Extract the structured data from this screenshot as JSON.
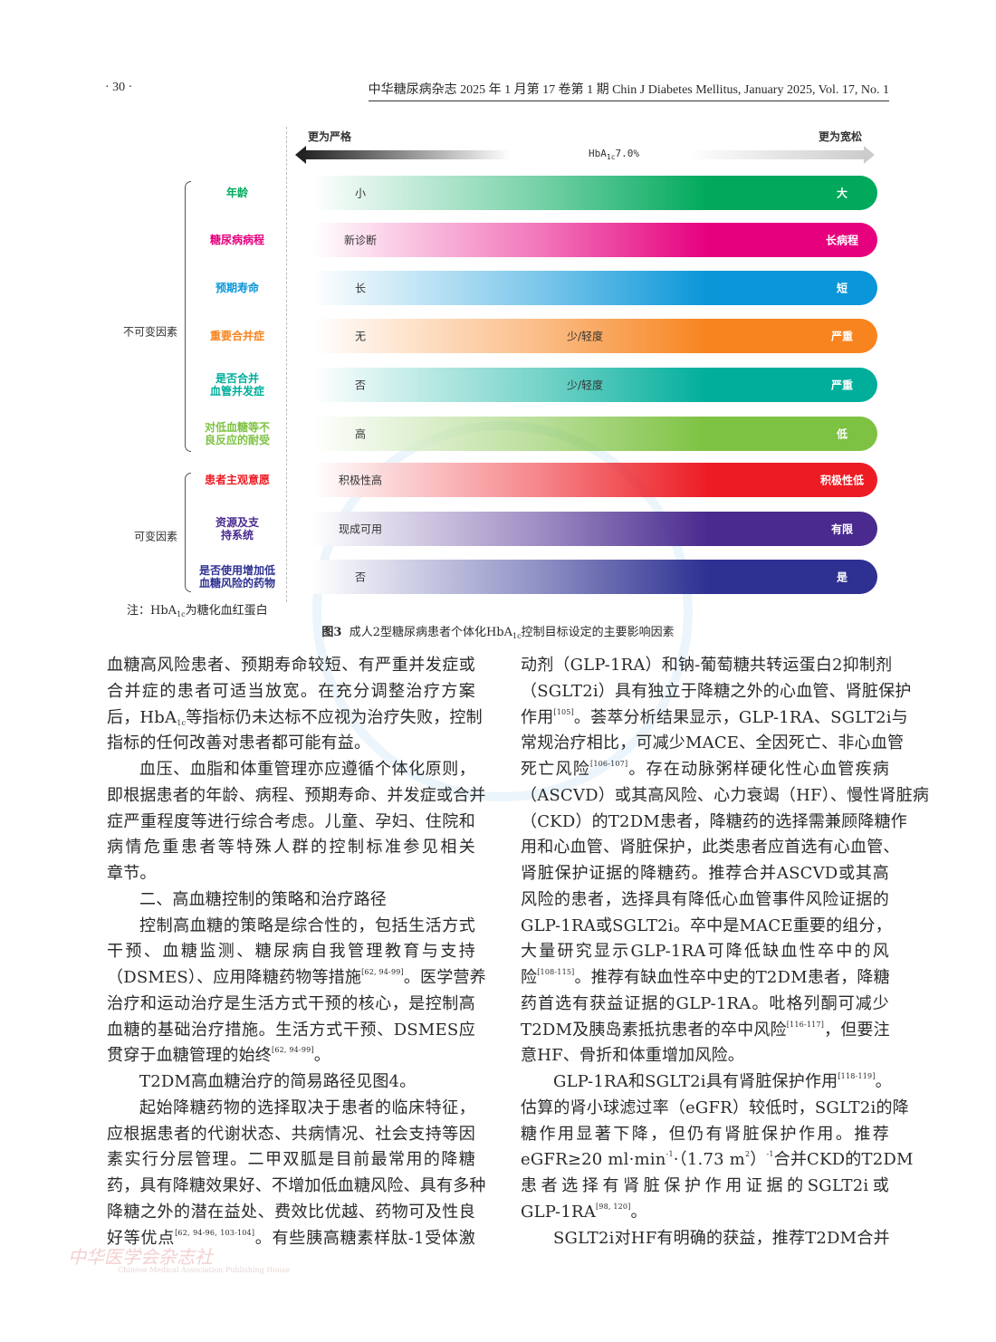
{
  "header": {
    "page_number": "· 30 ·",
    "journal": "中华糖尿病杂志 2025 年 1 月第 17 卷第 1 期   Chin J Diabetes Mellitus, January 2025, Vol. 17, No. 1"
  },
  "figure": {
    "stricter": "更为严格",
    "looser": "更为宽松",
    "hba1c": {
      "main": "HbA",
      "sub": "1c",
      "value": "7.0%"
    },
    "groups": [
      {
        "label": "不可变因素"
      },
      {
        "label": "可变因素"
      }
    ],
    "rows": [
      {
        "factor": [
          "年龄"
        ],
        "color": "#00a95c",
        "left": "小",
        "mid": "",
        "right": "大"
      },
      {
        "factor": [
          "糖尿病病程"
        ],
        "color": "#e6007e",
        "left": "新诊断",
        "mid": "",
        "right": "长病程"
      },
      {
        "factor": [
          "预期寿命"
        ],
        "color": "#0a96d8",
        "left": "长",
        "mid": "",
        "right": "短"
      },
      {
        "factor": [
          "重要合并症"
        ],
        "color": "#f7841f",
        "left": "无",
        "mid": "少/轻度",
        "right": "严重"
      },
      {
        "factor": [
          "是否合并",
          "血管并发症"
        ],
        "color": "#00ae9b",
        "left": "否",
        "mid": "少/轻度",
        "right": "严重"
      },
      {
        "factor": [
          "对低血糖等不",
          "良反应的耐受"
        ],
        "color": "#7dc242",
        "left": "高",
        "mid": "",
        "right": "低"
      },
      {
        "factor": [
          "患者主观意愿"
        ],
        "color": "#ed1c24",
        "left": "积极性高",
        "mid": "",
        "right": "积极性低"
      },
      {
        "factor": [
          "资源及支",
          "持系统"
        ],
        "color": "#4a2a8f",
        "left": "现成可用",
        "mid": "",
        "right": "有限"
      },
      {
        "factor": [
          "是否使用增加低",
          "血糖风险的药物"
        ],
        "color": "#2e3192",
        "left": "否",
        "mid": "",
        "right": "是"
      }
    ],
    "note": {
      "pre": "注：HbA",
      "sub": "1c",
      "post": "为糖化血红蛋白"
    },
    "caption": {
      "num": "图3",
      "pre": "成人2型糖尿病患者个体化HbA",
      "sub": "1c",
      "post": "控制目标设定的主要影响因素"
    }
  },
  "body": {
    "left": [
      {
        "c": "j",
        "s": [
          {
            "x": "血糖高风险患者、预期寿命较短、有严重并发症或"
          }
        ]
      },
      {
        "c": "j",
        "s": [
          {
            "x": "合并症的患者可适当放宽。在充分调整治疗方案"
          }
        ]
      },
      {
        "c": "j",
        "s": [
          {
            "x": "后，HbA"
          },
          {
            "sub": "1c"
          },
          {
            "x": "等指标仍未达标不应视为治疗失败，控制"
          }
        ]
      },
      {
        "c": "e",
        "s": [
          {
            "x": "指标的任何改善对患者都可能有益。"
          }
        ]
      },
      {
        "c": "j ind",
        "s": [
          {
            "x": "血压、血脂和体重管理亦应遵循个体化原则，"
          }
        ]
      },
      {
        "c": "j",
        "s": [
          {
            "x": "即根据患者的年龄、病程、预期寿命、并发症或合并"
          }
        ]
      },
      {
        "c": "j",
        "s": [
          {
            "x": "症严重程度等进行综合考虑。儿童、孕妇、住院和"
          }
        ]
      },
      {
        "c": "j",
        "s": [
          {
            "x": "病情危重患者等特殊人群的控制标准参见相关"
          }
        ]
      },
      {
        "c": "e",
        "s": [
          {
            "x": "章节。"
          }
        ]
      },
      {
        "c": "e ind",
        "s": [
          {
            "x": "二、高血糖控制的策略和治疗路径"
          }
        ]
      },
      {
        "c": "j ind",
        "s": [
          {
            "x": "控制高血糖的策略是综合性的，包括生活方式"
          }
        ]
      },
      {
        "c": "j",
        "s": [
          {
            "x": "干预、血糖监测、糖尿病自我管理教育与支持"
          }
        ]
      },
      {
        "c": "j",
        "s": [
          {
            "x": "（DSMES）、应用降糖药物等措施"
          },
          {
            "sup": "[62, 94-99]"
          },
          {
            "x": "。医学营养"
          }
        ]
      },
      {
        "c": "j",
        "s": [
          {
            "x": "治疗和运动治疗是生活方式干预的核心，是控制高"
          }
        ]
      },
      {
        "c": "j",
        "s": [
          {
            "x": "血糖的基础治疗措施。生活方式干预、DSMES应"
          }
        ]
      },
      {
        "c": "e",
        "s": [
          {
            "x": "贯穿于血糖管理的始终"
          },
          {
            "sup": "[62, 94-99]"
          },
          {
            "x": "。"
          }
        ]
      },
      {
        "c": "e ind",
        "s": [
          {
            "x": "T2DM高血糖治疗的简易路径见图4。"
          }
        ]
      },
      {
        "c": "j ind",
        "s": [
          {
            "x": "起始降糖药物的选择取决于患者的临床特征，"
          }
        ]
      },
      {
        "c": "j",
        "s": [
          {
            "x": "应根据患者的代谢状态、共病情况、社会支持等因"
          }
        ]
      },
      {
        "c": "j",
        "s": [
          {
            "x": "素实行分层管理。二甲双胍是目前最常用的降糖"
          }
        ]
      },
      {
        "c": "j",
        "s": [
          {
            "x": "药，具有降糖效果好、不增加低血糖风险、具有多种"
          }
        ]
      },
      {
        "c": "j",
        "s": [
          {
            "x": "降糖之外的潜在益处、费效比优越、药物可及性良"
          }
        ]
      },
      {
        "c": "j",
        "s": [
          {
            "x": "好等优点"
          },
          {
            "sup": "[62, 94-96, 103-104]"
          },
          {
            "x": "。有些胰高糖素样肽-1受体激"
          }
        ]
      }
    ],
    "right": [
      {
        "c": "j",
        "s": [
          {
            "x": "动剂（GLP-1RA）和钠-葡萄糖共转运蛋白2抑制剂"
          }
        ]
      },
      {
        "c": "j",
        "s": [
          {
            "x": "（SGLT2i）具有独立于降糖之外的心血管、肾脏保护"
          }
        ]
      },
      {
        "c": "j",
        "s": [
          {
            "x": "作用"
          },
          {
            "sup": "[105]"
          },
          {
            "x": "。荟萃分析结果显示，GLP-1RA、SGLT2i与"
          }
        ]
      },
      {
        "c": "j",
        "s": [
          {
            "x": "常规治疗相比，可减少MACE、全因死亡、非心血管"
          }
        ]
      },
      {
        "c": "j",
        "s": [
          {
            "x": "死亡风险"
          },
          {
            "sup": "[106-107]"
          },
          {
            "x": "。存在动脉粥样硬化性心血管疾病"
          }
        ]
      },
      {
        "c": "j",
        "s": [
          {
            "x": "（ASCVD）或其高风险、心力衰竭（HF）、慢性肾脏病"
          }
        ]
      },
      {
        "c": "j",
        "s": [
          {
            "x": "（CKD）的T2DM患者，降糖药的选择需兼顾降糖作"
          }
        ]
      },
      {
        "c": "j",
        "s": [
          {
            "x": "用和心血管、肾脏保护，此类患者应首选有心血管、"
          }
        ]
      },
      {
        "c": "j",
        "s": [
          {
            "x": "肾脏保护证据的降糖药。推荐合并ASCVD或其高"
          }
        ]
      },
      {
        "c": "j",
        "s": [
          {
            "x": "风险的患者，选择具有降低心血管事件风险证据的"
          }
        ]
      },
      {
        "c": "j",
        "s": [
          {
            "x": "GLP-1RA或SGLT2i。卒中是MACE重要的组分，"
          }
        ]
      },
      {
        "c": "j",
        "s": [
          {
            "x": "大量研究显示GLP-1RA可降低缺血性卒中的风"
          }
        ]
      },
      {
        "c": "j",
        "s": [
          {
            "x": "险"
          },
          {
            "sup": "[108-115]"
          },
          {
            "x": "。推荐有缺血性卒中史的T2DM患者，降糖"
          }
        ]
      },
      {
        "c": "j",
        "s": [
          {
            "x": "药首选有获益证据的GLP-1RA。吡格列酮可减少"
          }
        ]
      },
      {
        "c": "j",
        "s": [
          {
            "x": "T2DM及胰岛素抵抗患者的卒中风险"
          },
          {
            "sup": "[116-117]"
          },
          {
            "x": "，但要注"
          }
        ]
      },
      {
        "c": "e",
        "s": [
          {
            "x": "意HF、骨折和体重增加风险。"
          }
        ]
      },
      {
        "c": "j ind",
        "s": [
          {
            "x": "GLP-1RA和SGLT2i具有肾脏保护作用"
          },
          {
            "sup": "[118-119]"
          },
          {
            "x": "。"
          }
        ]
      },
      {
        "c": "j",
        "s": [
          {
            "x": "估算的肾小球滤过率（eGFR）较低时，SGLT2i的降"
          }
        ]
      },
      {
        "c": "j",
        "s": [
          {
            "x": "糖作用显著下降，但仍有肾脏保护作用。推荐"
          }
        ]
      },
      {
        "c": "j",
        "s": [
          {
            "x": "eGFR≥20 ml·min"
          },
          {
            "sup": "-1"
          },
          {
            "x": "·（1.73 m"
          },
          {
            "sup": "2"
          },
          {
            "x": "）"
          },
          {
            "sup": "-1"
          },
          {
            "x": "合并CKD的T2DM"
          }
        ]
      },
      {
        "c": "j",
        "s": [
          {
            "x": "患者选择有肾脏保护作用证据的SGLT2i或"
          }
        ]
      },
      {
        "c": "e",
        "s": [
          {
            "x": "GLP-1RA"
          },
          {
            "sup": "[98, 120]"
          },
          {
            "x": "。"
          }
        ]
      },
      {
        "c": "j ind",
        "s": [
          {
            "x": "SGLT2i对HF有明确的获益，推荐T2DM合并"
          }
        ]
      }
    ]
  },
  "footer_logo": {
    "cn": "中华医学会杂志社",
    "en": "Chinese Medical Association Publishing House"
  }
}
